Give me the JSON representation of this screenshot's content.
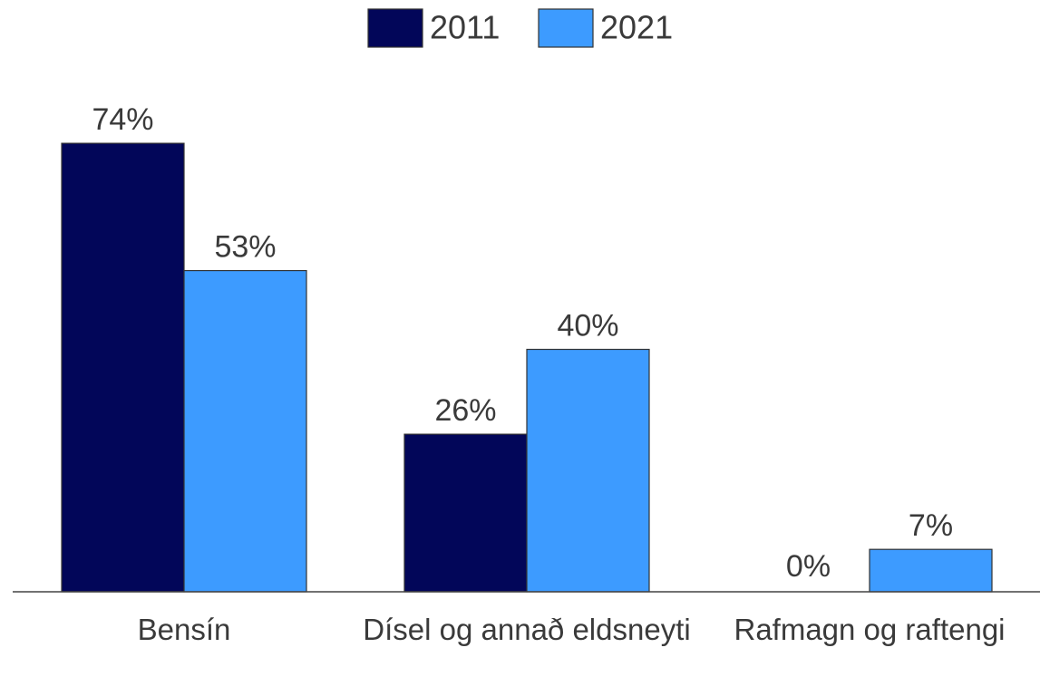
{
  "chart_data": {
    "type": "bar",
    "categories": [
      "Bensín",
      "Dísel og annað eldsneyti",
      "Rafmagn og raftengi"
    ],
    "series": [
      {
        "name": "2011",
        "color": "#020659",
        "values": [
          74,
          26,
          0
        ],
        "value_labels": [
          "74%",
          "26%",
          "0%"
        ]
      },
      {
        "name": "2021",
        "color": "#3d9bff",
        "values": [
          53,
          40,
          7
        ],
        "value_labels": [
          "53%",
          "40%",
          "7%"
        ]
      }
    ],
    "ylim": [
      0,
      80
    ],
    "legend": "top"
  }
}
